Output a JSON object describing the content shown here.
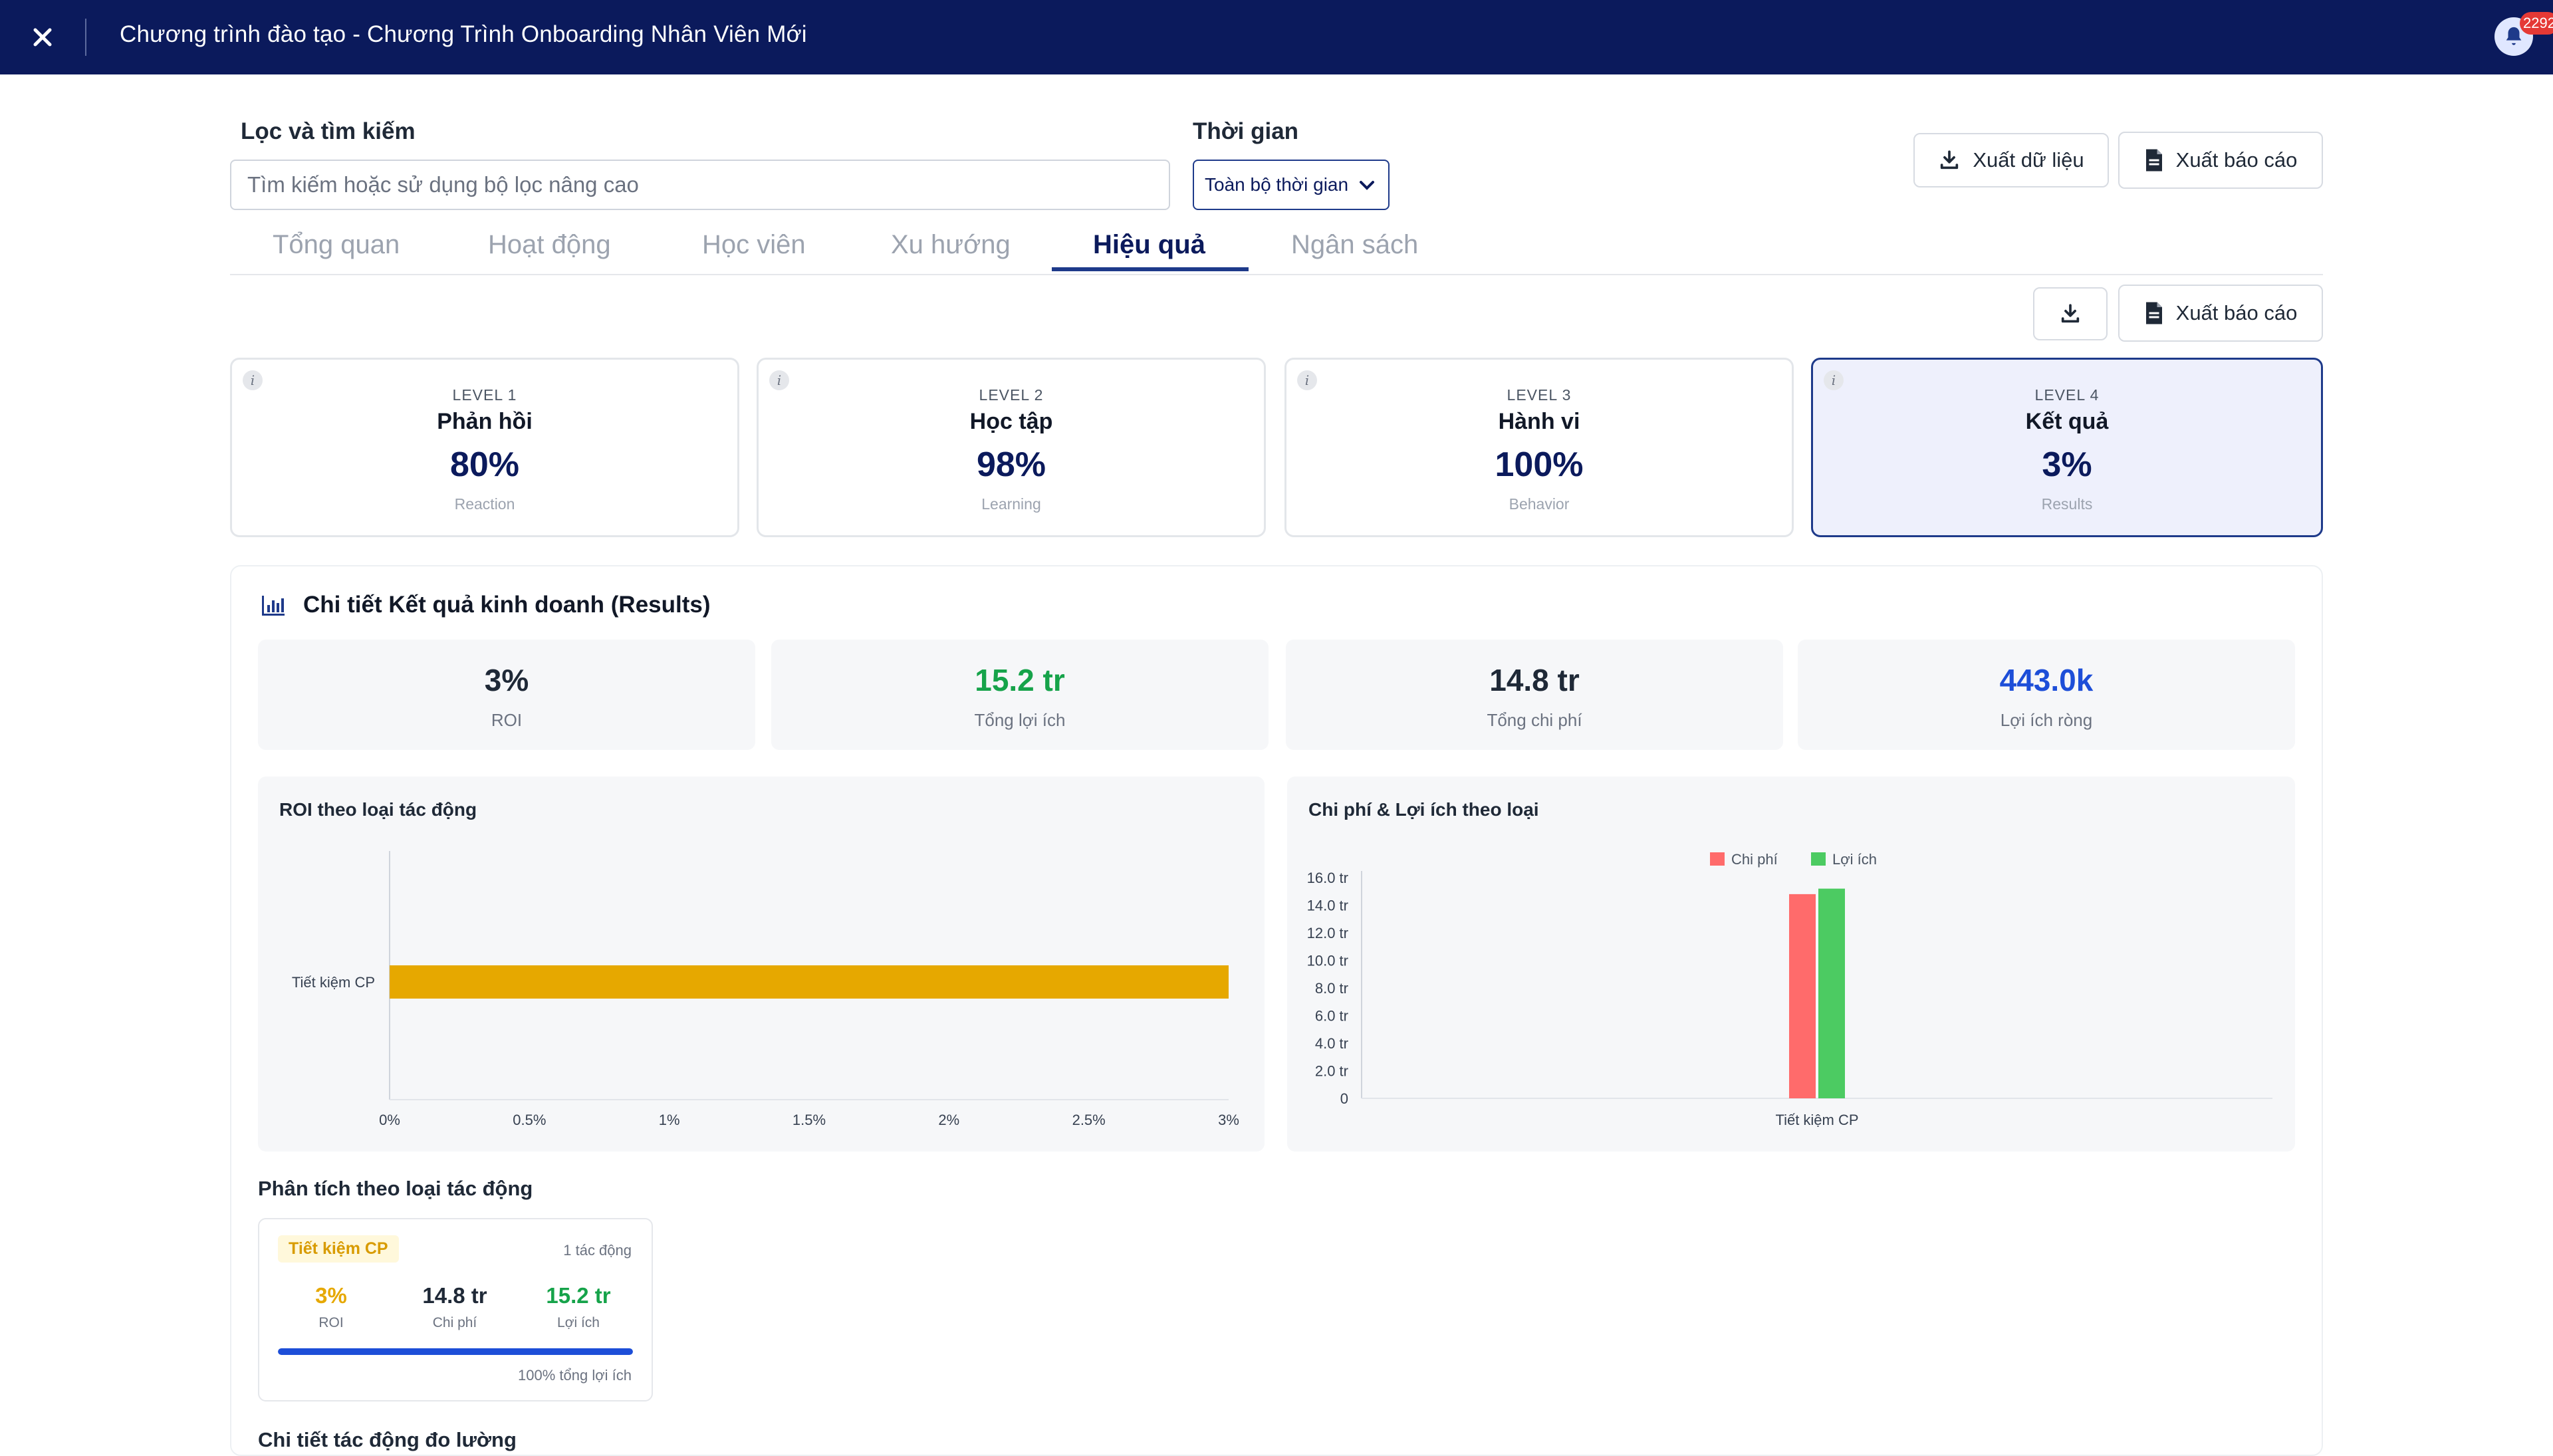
{
  "header": {
    "title": "Chương trình đào tạo - Chương Trình Onboarding Nhân Viên Mới",
    "notification_count": "2292"
  },
  "filters": {
    "search_label": "Lọc và tìm kiếm",
    "search_placeholder": "Tìm kiếm hoặc sử dụng bộ lọc nâng cao",
    "time_label": "Thời gian",
    "time_value": "Toàn bộ thời gian",
    "export_data": "Xuất dữ liệu",
    "export_report": "Xuất báo cáo"
  },
  "tabs": [
    {
      "label": "Tổng quan",
      "active": false
    },
    {
      "label": "Hoạt động",
      "active": false
    },
    {
      "label": "Học viên",
      "active": false
    },
    {
      "label": "Xu hướng",
      "active": false
    },
    {
      "label": "Hiệu quả",
      "active": true
    },
    {
      "label": "Ngân sách",
      "active": false
    }
  ],
  "section_toolbar": {
    "export_report": "Xuất báo cáo"
  },
  "levels": [
    {
      "level": "LEVEL 1",
      "name": "Phản hồi",
      "value": "80%",
      "english": "Reaction",
      "active": false
    },
    {
      "level": "LEVEL 2",
      "name": "Học tập",
      "value": "98%",
      "english": "Learning",
      "active": false
    },
    {
      "level": "LEVEL 3",
      "name": "Hành vi",
      "value": "100%",
      "english": "Behavior",
      "active": false
    },
    {
      "level": "LEVEL 4",
      "name": "Kết quả",
      "value": "3%",
      "english": "Results",
      "active": true
    }
  ],
  "results": {
    "title": "Chi tiết Kết quả kinh doanh (Results)",
    "stats": [
      {
        "value": "3%",
        "label": "ROI",
        "color": "#1f2937"
      },
      {
        "value": "15.2 tr",
        "label": "Tổng lợi ích",
        "color": "#16a34a"
      },
      {
        "value": "14.8 tr",
        "label": "Tổng chi phí",
        "color": "#1f2937"
      },
      {
        "value": "443.0k",
        "label": "Lợi ích ròng",
        "color": "#1d4ed8"
      }
    ]
  },
  "chart_data": [
    {
      "type": "bar",
      "orientation": "horizontal",
      "title": "ROI theo loại tác động",
      "categories": [
        "Tiết kiệm CP"
      ],
      "values": [
        3
      ],
      "unit": "%",
      "xlim": [
        0,
        3
      ],
      "x_ticks": [
        "0%",
        "0.5%",
        "1%",
        "1.5%",
        "2%",
        "2.5%",
        "3%"
      ],
      "color": "#e6a800"
    },
    {
      "type": "bar",
      "title": "Chi phí & Lợi ích theo loại",
      "categories": [
        "Tiết kiệm CP"
      ],
      "series": [
        {
          "name": "Chi phí",
          "values": [
            14.8
          ],
          "color": "#ff6b6b"
        },
        {
          "name": "Lợi ích",
          "values": [
            15.2
          ],
          "color": "#4ccb62"
        }
      ],
      "ylim": [
        0,
        16
      ],
      "y_ticks": [
        "0",
        "2.0 tr",
        "4.0 tr",
        "6.0 tr",
        "8.0 tr",
        "10.0 tr",
        "12.0 tr",
        "14.0 tr",
        "16.0 tr"
      ],
      "legend": "top-center"
    }
  ],
  "impact_analysis": {
    "title": "Phân tích theo loại tác động",
    "card": {
      "tag": "Tiết kiệm CP",
      "count": "1 tác động",
      "roi": "3%",
      "roi_label": "ROI",
      "cost": "14.8 tr",
      "cost_label": "Chi phí",
      "benefit": "15.2 tr",
      "benefit_label": "Lợi ích",
      "share_percent": 100,
      "share_text": "100% tổng lợi ích"
    },
    "next_title": "Chi tiết tác động đo lường"
  }
}
